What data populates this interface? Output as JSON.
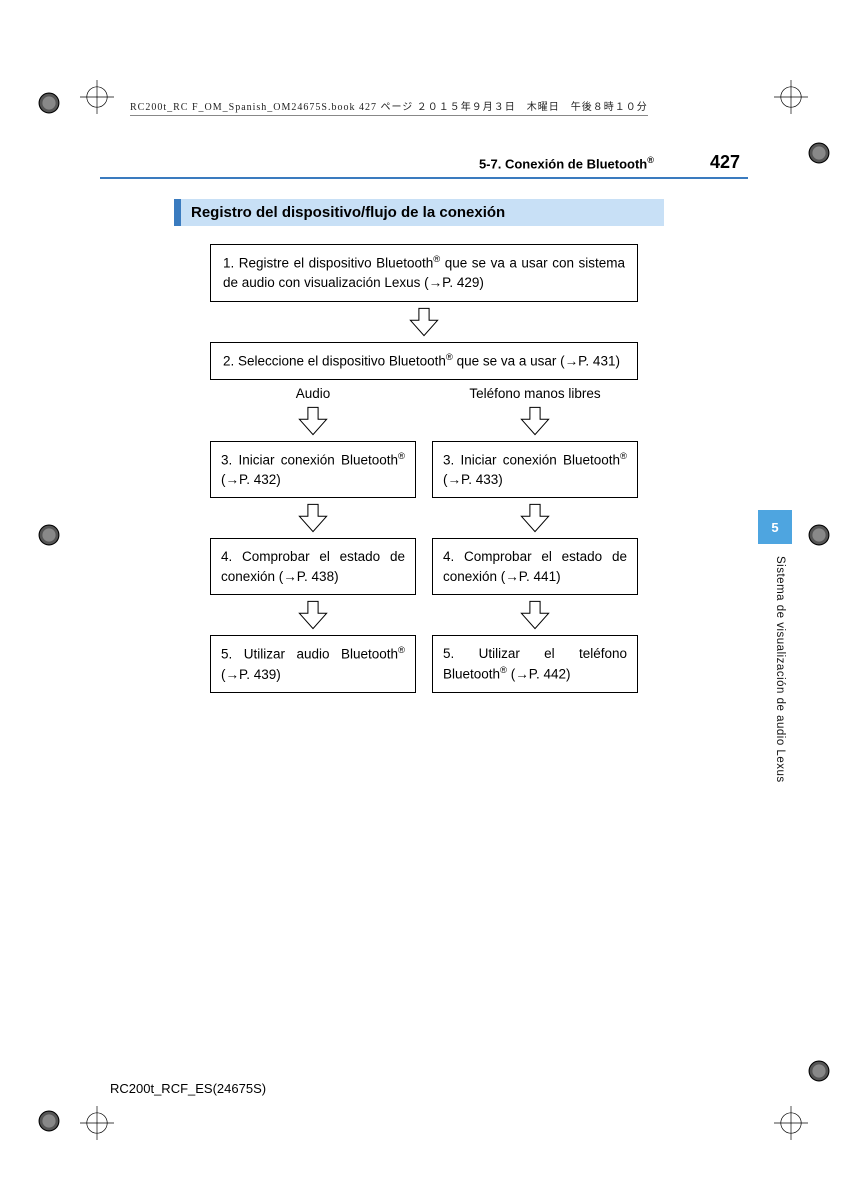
{
  "print_header": "RC200t_RC F_OM_Spanish_OM24675S.book  427 ページ  ２０１５年９月３日　木曜日　午後８時１０分",
  "header": {
    "section": "5-7. Conexión de Bluetooth",
    "page": "427"
  },
  "title_bar": "Registro del dispositivo/flujo de la conexión",
  "flow": {
    "step1": "1.  Registre el dispositivo Bluetooth® que se va a usar con sistema de audio con visualización Lexus (→P. 429)",
    "step2": "2. Seleccione el dispositivo Bluetooth® que se va a usar (→P. 431)",
    "col_audio_label": "Audio",
    "col_phone_label": "Teléfono manos libres",
    "audio": {
      "s3": "3. Iniciar conexión Bluetooth® (→P. 432)",
      "s4": "4. Comprobar el estado de conexión (→P. 438)",
      "s5": "5. Utilizar audio Bluetooth® (→P. 439)"
    },
    "phone": {
      "s3": "3. Iniciar conexión Bluetooth® (→P. 433)",
      "s4": "4. Comprobar el estado de conexión (→P. 441)",
      "s5": "5. Utilizar el teléfono Bluetooth® (→P. 442)"
    }
  },
  "side_tab": "5",
  "side_label": "Sistema de visualización de audio Lexus",
  "footer": "RC200t_RCF_ES(24675S)",
  "colors": {
    "rule": "#3a7bbf",
    "title_bg": "#c8e0f6",
    "tab_bg": "#4ea5e0"
  }
}
